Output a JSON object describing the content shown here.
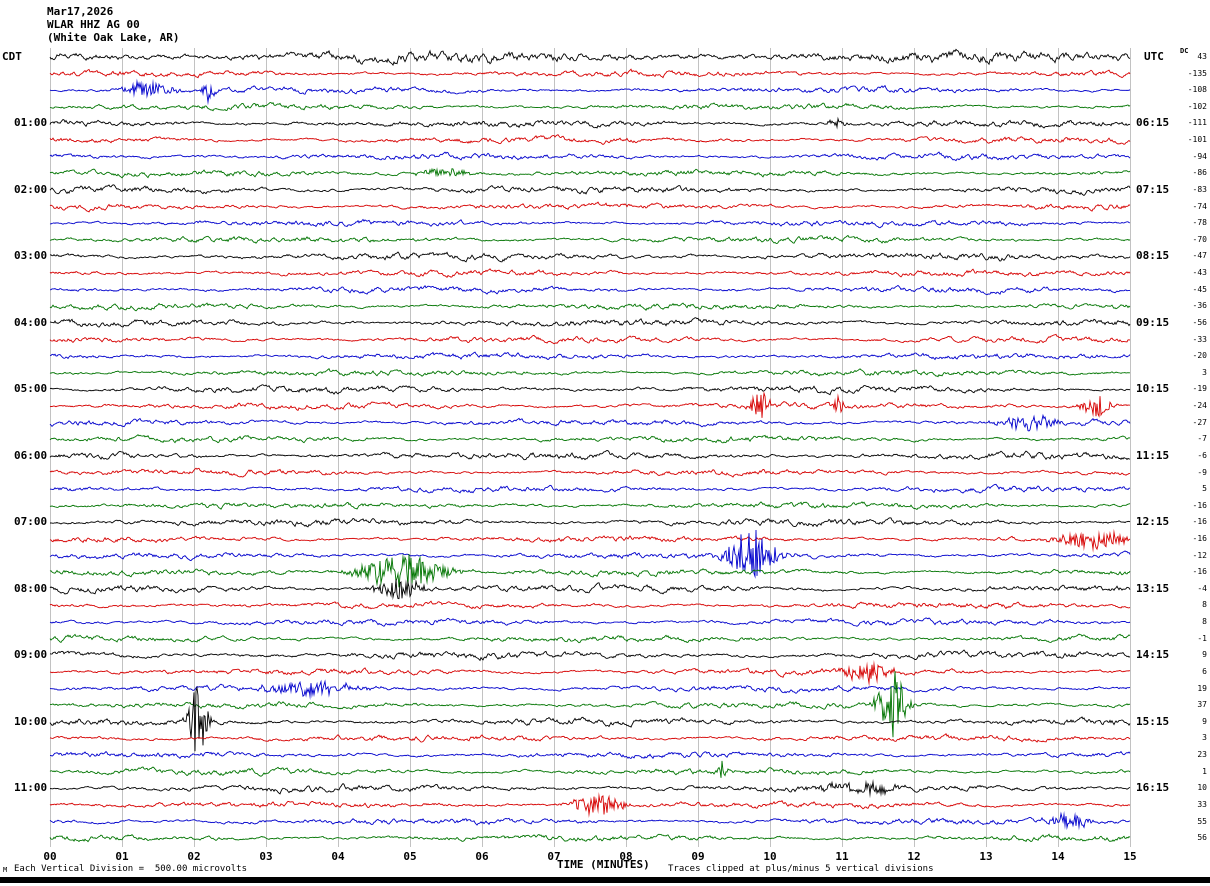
{
  "header": {
    "date": "Mar17,2026",
    "station": "WLAR HHZ AG 00",
    "location": "(White Oak Lake, AR)"
  },
  "axes": {
    "left_tz": "CDT",
    "right_tz": "UTC",
    "dc_header": "DC",
    "xlabel": "TIME (MINUTES)",
    "x_ticks": [
      "00",
      "01",
      "02",
      "03",
      "04",
      "05",
      "06",
      "07",
      "08",
      "09",
      "10",
      "11",
      "12",
      "13",
      "14",
      "15"
    ]
  },
  "footer": {
    "left_mark": "M",
    "left_note": "Each Vertical Division =  500.00 microvolts",
    "right_note": "Traces clipped at plus/minus 5 vertical divisions"
  },
  "colors": {
    "black": "#000000",
    "red": "#d60000",
    "blue": "#0000cc",
    "green": "#007400",
    "grid": "#a8a8a8"
  },
  "chart_data": {
    "type": "seismogram",
    "title": "WLAR HHZ AG 00 (White Oak Lake, AR) Mar17,2026",
    "xlabel": "TIME (MINUTES)",
    "x_range": [
      0,
      15
    ],
    "minutes_per_line": 15,
    "left_timezone": "CDT",
    "right_timezone": "UTC",
    "vertical_division_microvolts": 500.0,
    "clip_divisions": 5,
    "rows": [
      {
        "color": "black",
        "dc": 43,
        "amp": 1.7
      },
      {
        "color": "red",
        "dc": -135
      },
      {
        "color": "blue",
        "dc": -108,
        "events": [
          {
            "m": 1.35,
            "w": 0.3,
            "a": 6
          },
          {
            "m": 2.2,
            "w": 0.08,
            "a": 9
          }
        ]
      },
      {
        "color": "green",
        "dc": -102
      },
      {
        "color": "black",
        "dc": -111,
        "left_label": "01:00",
        "right_label": "06:15",
        "events": [
          {
            "m": 10.9,
            "w": 0.1,
            "a": 4
          }
        ]
      },
      {
        "color": "red",
        "dc": -101
      },
      {
        "color": "blue",
        "dc": -94
      },
      {
        "color": "green",
        "dc": -86,
        "events": [
          {
            "m": 5.5,
            "w": 0.35,
            "a": 3
          }
        ]
      },
      {
        "color": "black",
        "dc": -83,
        "left_label": "02:00",
        "right_label": "07:15"
      },
      {
        "color": "red",
        "dc": -74
      },
      {
        "color": "blue",
        "dc": -78
      },
      {
        "color": "green",
        "dc": -70
      },
      {
        "color": "black",
        "dc": -47,
        "left_label": "03:00",
        "right_label": "08:15"
      },
      {
        "color": "red",
        "dc": -43
      },
      {
        "color": "blue",
        "dc": -45
      },
      {
        "color": "green",
        "dc": -36
      },
      {
        "color": "black",
        "dc": -56,
        "left_label": "04:00",
        "right_label": "09:15"
      },
      {
        "color": "red",
        "dc": -33
      },
      {
        "color": "blue",
        "dc": -20
      },
      {
        "color": "green",
        "dc": 3
      },
      {
        "color": "black",
        "dc": -19,
        "left_label": "05:00",
        "right_label": "10:15"
      },
      {
        "color": "red",
        "dc": -24,
        "events": [
          {
            "m": 9.85,
            "w": 0.12,
            "a": 11
          },
          {
            "m": 10.95,
            "w": 0.07,
            "a": 6
          },
          {
            "m": 14.55,
            "w": 0.2,
            "a": 8
          }
        ]
      },
      {
        "color": "blue",
        "dc": -27,
        "events": [
          {
            "m": 13.6,
            "w": 0.35,
            "a": 6
          }
        ]
      },
      {
        "color": "green",
        "dc": -7
      },
      {
        "color": "black",
        "dc": -6,
        "left_label": "06:00",
        "right_label": "11:15"
      },
      {
        "color": "red",
        "dc": -9
      },
      {
        "color": "blue",
        "dc": 5
      },
      {
        "color": "green",
        "dc": -16
      },
      {
        "color": "black",
        "dc": -16,
        "left_label": "07:00",
        "right_label": "12:15"
      },
      {
        "color": "red",
        "dc": -16,
        "events": [
          {
            "m": 14.5,
            "w": 0.45,
            "a": 7
          }
        ]
      },
      {
        "color": "blue",
        "dc": -12,
        "events": [
          {
            "m": 9.75,
            "w": 0.3,
            "a": 21
          }
        ]
      },
      {
        "color": "green",
        "dc": -16,
        "events": [
          {
            "m": 4.9,
            "w": 0.55,
            "a": 13
          }
        ]
      },
      {
        "color": "black",
        "dc": -4,
        "left_label": "08:00",
        "right_label": "13:15",
        "events": [
          {
            "m": 4.85,
            "w": 0.3,
            "a": 8
          }
        ]
      },
      {
        "color": "red",
        "dc": 8
      },
      {
        "color": "blue",
        "dc": 8
      },
      {
        "color": "green",
        "dc": -1
      },
      {
        "color": "black",
        "dc": 9,
        "left_label": "09:00",
        "right_label": "14:15"
      },
      {
        "color": "red",
        "dc": 6,
        "events": [
          {
            "m": 11.35,
            "w": 0.3,
            "a": 8
          }
        ]
      },
      {
        "color": "blue",
        "dc": 19,
        "events": [
          {
            "m": 3.6,
            "w": 0.6,
            "a": 5
          }
        ]
      },
      {
        "color": "green",
        "dc": 37,
        "events": [
          {
            "m": 11.7,
            "w": 0.18,
            "a": 26
          }
        ]
      },
      {
        "color": "black",
        "dc": 9,
        "left_label": "10:00",
        "right_label": "15:15",
        "events": [
          {
            "m": 2.05,
            "w": 0.12,
            "a": 28
          }
        ]
      },
      {
        "color": "red",
        "dc": 3
      },
      {
        "color": "blue",
        "dc": 23
      },
      {
        "color": "green",
        "dc": 1,
        "events": [
          {
            "m": 9.35,
            "w": 0.06,
            "a": 10
          }
        ]
      },
      {
        "color": "black",
        "dc": 10,
        "left_label": "11:00",
        "right_label": "16:15",
        "events": [
          {
            "m": 11.3,
            "w": 0.5,
            "a": 4
          }
        ]
      },
      {
        "color": "red",
        "dc": 33,
        "events": [
          {
            "m": 7.6,
            "w": 0.3,
            "a": 9
          }
        ]
      },
      {
        "color": "blue",
        "dc": 55,
        "events": [
          {
            "m": 14.15,
            "w": 0.25,
            "a": 6
          }
        ]
      },
      {
        "color": "green",
        "dc": 56
      }
    ]
  }
}
